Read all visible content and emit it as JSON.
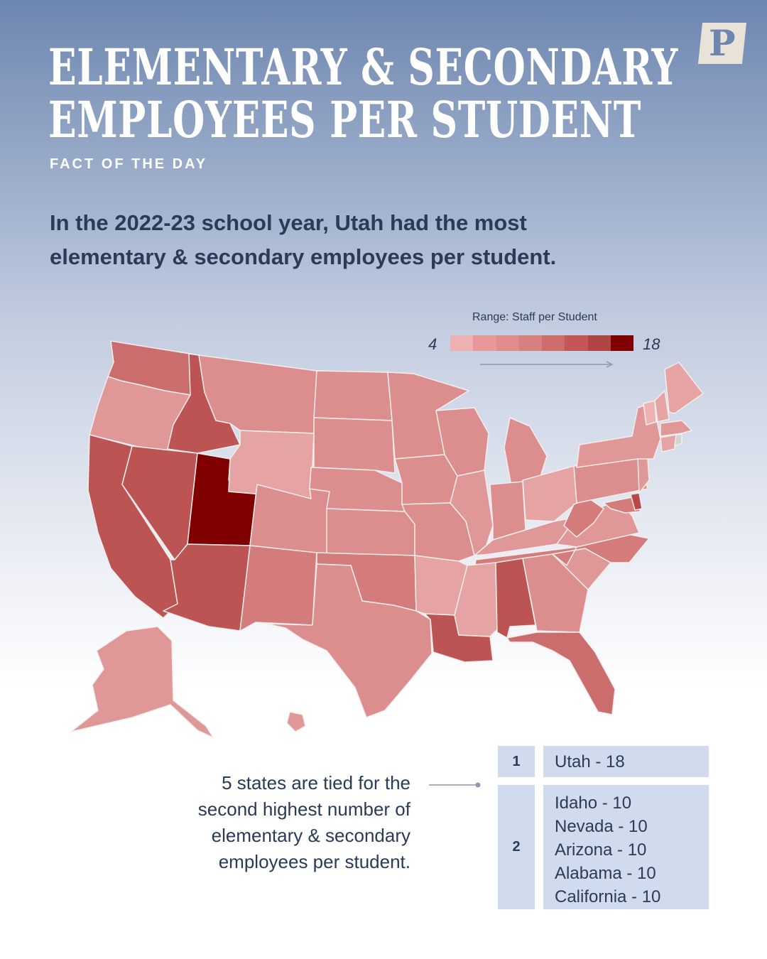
{
  "header": {
    "title_line1": "ELEMENTARY & SECONDARY",
    "title_line2": "EMPLOYEES PER STUDENT",
    "kicker": "FACT OF THE DAY",
    "logo_letter": "P"
  },
  "headline": {
    "line1": "In the 2022-23 school year, Utah had the most",
    "line2": "elementary & secondary employees per student."
  },
  "legend": {
    "title": "Range: Staff per Student",
    "min": "4",
    "max": "18",
    "colors": [
      "#eeb1b1",
      "#e79999",
      "#e08c8c",
      "#d87f7f",
      "#ce6b6b",
      "#c35757",
      "#b04545",
      "#800000"
    ]
  },
  "map_colors": {
    "utah": "#800000",
    "tier2": "#bd5454",
    "washington": "#cc6d6d",
    "florida": "#cc6d6d",
    "mid_dark": "#d47b7b",
    "mid": "#dc8d8d",
    "light": "#e09797",
    "lighter": "#e6a3a3",
    "lightest": "#edb3b3",
    "delaware": "#b84848",
    "rhode_island": "#d4d4d4"
  },
  "callout": {
    "line1": "5 states are tied for the",
    "line2": "second highest number of",
    "line3": "elementary & secondary",
    "line4": "employees per student."
  },
  "ranking": [
    {
      "rank": "1",
      "names": [
        "Utah - 18"
      ]
    },
    {
      "rank": "2",
      "names": [
        "Idaho - 10",
        "Nevada - 10",
        "Arizona - 10",
        "Alabama - 10",
        "California - 10"
      ]
    }
  ]
}
